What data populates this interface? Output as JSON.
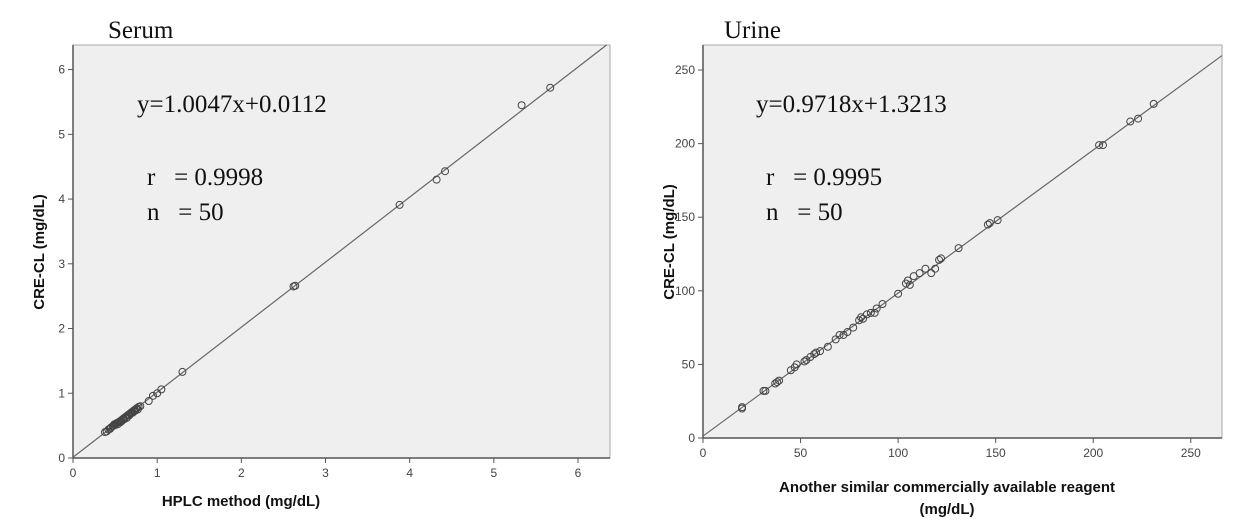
{
  "chart_data": [
    {
      "type": "scatter",
      "title": "Serum",
      "xlabel": "HPLC method (mg/dL)",
      "ylabel": "CRE-CL (mg/dL)",
      "xlim": [
        0,
        6.38
      ],
      "ylim": [
        0,
        6.38
      ],
      "xticks": [
        0,
        1,
        2,
        3,
        4,
        5,
        6
      ],
      "yticks": [
        0,
        1,
        2,
        3,
        4,
        5,
        6
      ],
      "grid": false,
      "equation": "y=1.0047x+0.0112",
      "r_text": "r   = 0.9998",
      "n_text": "n   = 50",
      "fit": {
        "slope": 1.0047,
        "intercept": 0.0112
      },
      "points": [
        [
          0.38,
          0.4
        ],
        [
          0.4,
          0.41
        ],
        [
          0.42,
          0.44
        ],
        [
          0.44,
          0.45
        ],
        [
          0.45,
          0.47
        ],
        [
          0.47,
          0.49
        ],
        [
          0.48,
          0.5
        ],
        [
          0.49,
          0.52
        ],
        [
          0.5,
          0.51
        ],
        [
          0.51,
          0.53
        ],
        [
          0.52,
          0.54
        ],
        [
          0.53,
          0.52
        ],
        [
          0.54,
          0.55
        ],
        [
          0.55,
          0.56
        ],
        [
          0.56,
          0.55
        ],
        [
          0.57,
          0.58
        ],
        [
          0.58,
          0.57
        ],
        [
          0.59,
          0.6
        ],
        [
          0.6,
          0.61
        ],
        [
          0.61,
          0.6
        ],
        [
          0.62,
          0.63
        ],
        [
          0.63,
          0.64
        ],
        [
          0.64,
          0.62
        ],
        [
          0.65,
          0.66
        ],
        [
          0.66,
          0.67
        ],
        [
          0.67,
          0.66
        ],
        [
          0.68,
          0.69
        ],
        [
          0.69,
          0.7
        ],
        [
          0.7,
          0.71
        ],
        [
          0.71,
          0.7
        ],
        [
          0.72,
          0.73
        ],
        [
          0.73,
          0.74
        ],
        [
          0.74,
          0.73
        ],
        [
          0.75,
          0.76
        ],
        [
          0.76,
          0.77
        ],
        [
          0.77,
          0.75
        ],
        [
          0.78,
          0.79
        ],
        [
          0.8,
          0.8
        ],
        [
          0.9,
          0.88
        ],
        [
          0.95,
          0.96
        ],
        [
          1.0,
          1.0
        ],
        [
          1.05,
          1.06
        ],
        [
          1.3,
          1.33
        ],
        [
          2.62,
          2.65
        ],
        [
          2.64,
          2.66
        ],
        [
          3.88,
          3.91
        ],
        [
          4.32,
          4.3
        ],
        [
          4.42,
          4.43
        ],
        [
          5.33,
          5.45
        ],
        [
          5.67,
          5.72
        ]
      ]
    },
    {
      "type": "scatter",
      "title": "Urine",
      "xlabel": "Another similar commercially available reagent",
      "xlabel2": "(mg/dL)",
      "ylabel": "CRE-CL (mg/dL)",
      "xlim": [
        0,
        266
      ],
      "ylim": [
        0,
        267
      ],
      "xticks": [
        0,
        50,
        100,
        150,
        200,
        250
      ],
      "yticks": [
        0,
        50,
        100,
        150,
        200,
        250
      ],
      "grid": false,
      "equation": "y=0.9718x+1.3213",
      "r_text": "r   = 0.9995",
      "n_text": "n   = 50",
      "fit": {
        "slope": 0.9718,
        "intercept": 1.3213
      },
      "points": [
        [
          20,
          20
        ],
        [
          20,
          21
        ],
        [
          31,
          32
        ],
        [
          32,
          32
        ],
        [
          37,
          37
        ],
        [
          38,
          38
        ],
        [
          39,
          39
        ],
        [
          45,
          46
        ],
        [
          47,
          48
        ],
        [
          48,
          50
        ],
        [
          52,
          52
        ],
        [
          53,
          53
        ],
        [
          55,
          55
        ],
        [
          57,
          57
        ],
        [
          58,
          58
        ],
        [
          60,
          59
        ],
        [
          64,
          62
        ],
        [
          68,
          67
        ],
        [
          70,
          70
        ],
        [
          72,
          70
        ],
        [
          74,
          72
        ],
        [
          77,
          75
        ],
        [
          80,
          80
        ],
        [
          81,
          82
        ],
        [
          82,
          81
        ],
        [
          84,
          84
        ],
        [
          86,
          85
        ],
        [
          88,
          85
        ],
        [
          89,
          88
        ],
        [
          92,
          91
        ],
        [
          100,
          98
        ],
        [
          104,
          105
        ],
        [
          105,
          107
        ],
        [
          106,
          104
        ],
        [
          108,
          110
        ],
        [
          111,
          112
        ],
        [
          114,
          115
        ],
        [
          117,
          112
        ],
        [
          119,
          115
        ],
        [
          121,
          121
        ],
        [
          122,
          122
        ],
        [
          131,
          129
        ],
        [
          146,
          145
        ],
        [
          147,
          146
        ],
        [
          151,
          148
        ],
        [
          203,
          199
        ],
        [
          205,
          199
        ],
        [
          219,
          215
        ],
        [
          223,
          217
        ],
        [
          231,
          227
        ]
      ]
    }
  ]
}
